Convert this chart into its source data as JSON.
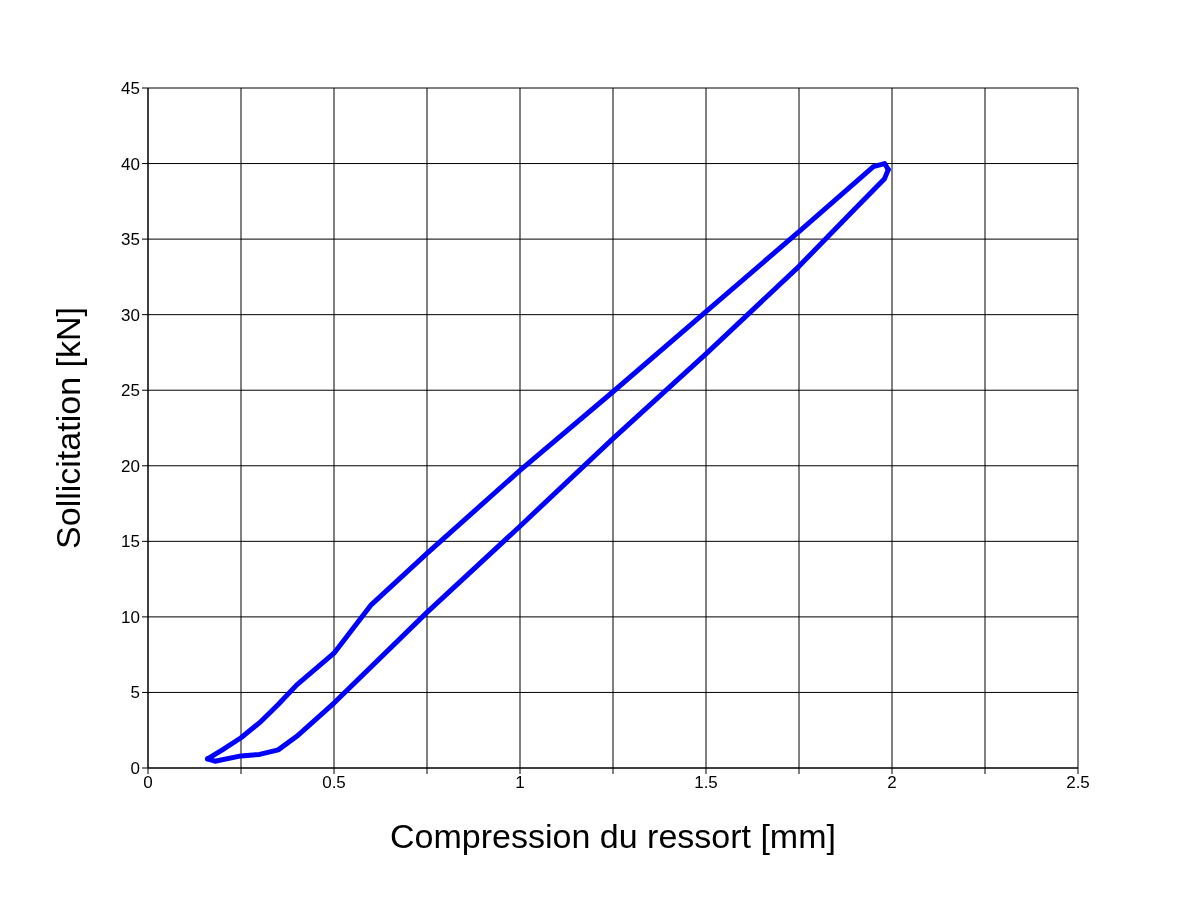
{
  "chart_data": {
    "type": "line",
    "xlabel": "Compression du ressort [mm]",
    "ylabel": "Sollicitation [kN]",
    "series": [
      {
        "color": "#0000ff",
        "x": [
          0.16,
          0.2,
          0.25,
          0.3,
          0.35,
          0.4,
          0.5,
          0.6,
          0.75,
          1.0,
          1.25,
          1.5,
          1.75,
          1.95,
          1.98,
          1.99
        ],
        "values": [
          0.6,
          1.2,
          2.0,
          3.0,
          4.2,
          5.5,
          7.6,
          10.8,
          14.2,
          19.7,
          24.9,
          30.2,
          35.5,
          39.8,
          40.0,
          39.6
        ]
      },
      {
        "color": "#0000ff",
        "x": [
          0.16,
          0.18,
          0.25,
          0.3,
          0.35,
          0.4,
          0.5,
          0.75,
          1.0,
          1.25,
          1.5,
          1.75,
          1.9,
          1.98,
          1.99
        ],
        "values": [
          0.6,
          0.45,
          0.8,
          0.9,
          1.2,
          2.1,
          4.3,
          10.3,
          16.0,
          21.8,
          27.4,
          33.2,
          37.0,
          39.0,
          39.6
        ]
      }
    ],
    "xlim": [
      0,
      2.5
    ],
    "xticks": [
      0,
      {
        "value": 0.25,
        "label": null
      },
      0.5,
      {
        "value": 0.75,
        "label": null
      },
      1,
      {
        "value": 1.25,
        "label": null
      },
      1.5,
      {
        "value": 1.75,
        "label": null
      },
      2,
      {
        "value": 2.25,
        "label": null
      },
      2.5
    ],
    "ylim": [
      0,
      45
    ],
    "yticks": [
      0,
      5,
      10,
      15,
      20,
      25,
      30,
      35,
      40,
      45
    ],
    "grid": true,
    "marker": "none",
    "line_style": "solid",
    "legend": false
  }
}
